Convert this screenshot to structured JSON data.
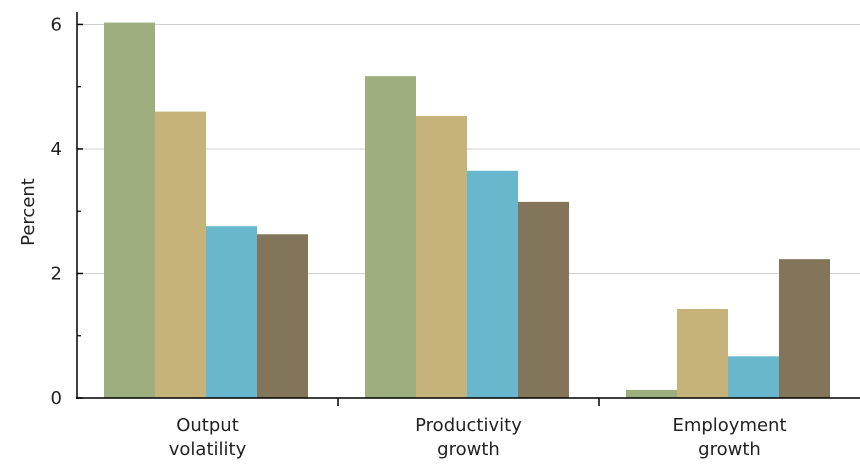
{
  "chart_data": {
    "type": "bar",
    "ylabel": "Percent",
    "ylim": [
      0,
      6.2
    ],
    "yticks": [
      0,
      2,
      4,
      6
    ],
    "minor_yticks": [
      1,
      3,
      5
    ],
    "grid": true,
    "categories": [
      [
        "Output",
        "volatility"
      ],
      [
        "Productivity",
        "growth"
      ],
      [
        "Employment",
        "growth"
      ]
    ],
    "series": [
      {
        "color": "#9fae7f",
        "values": [
          6.03,
          5.17,
          0.13
        ]
      },
      {
        "color": "#c6b37a",
        "values": [
          4.6,
          4.53,
          1.43
        ]
      },
      {
        "color": "#69b7cd",
        "values": [
          2.76,
          3.65,
          0.67
        ]
      },
      {
        "color": "#83755a",
        "values": [
          2.63,
          3.15,
          2.23
        ]
      }
    ]
  }
}
